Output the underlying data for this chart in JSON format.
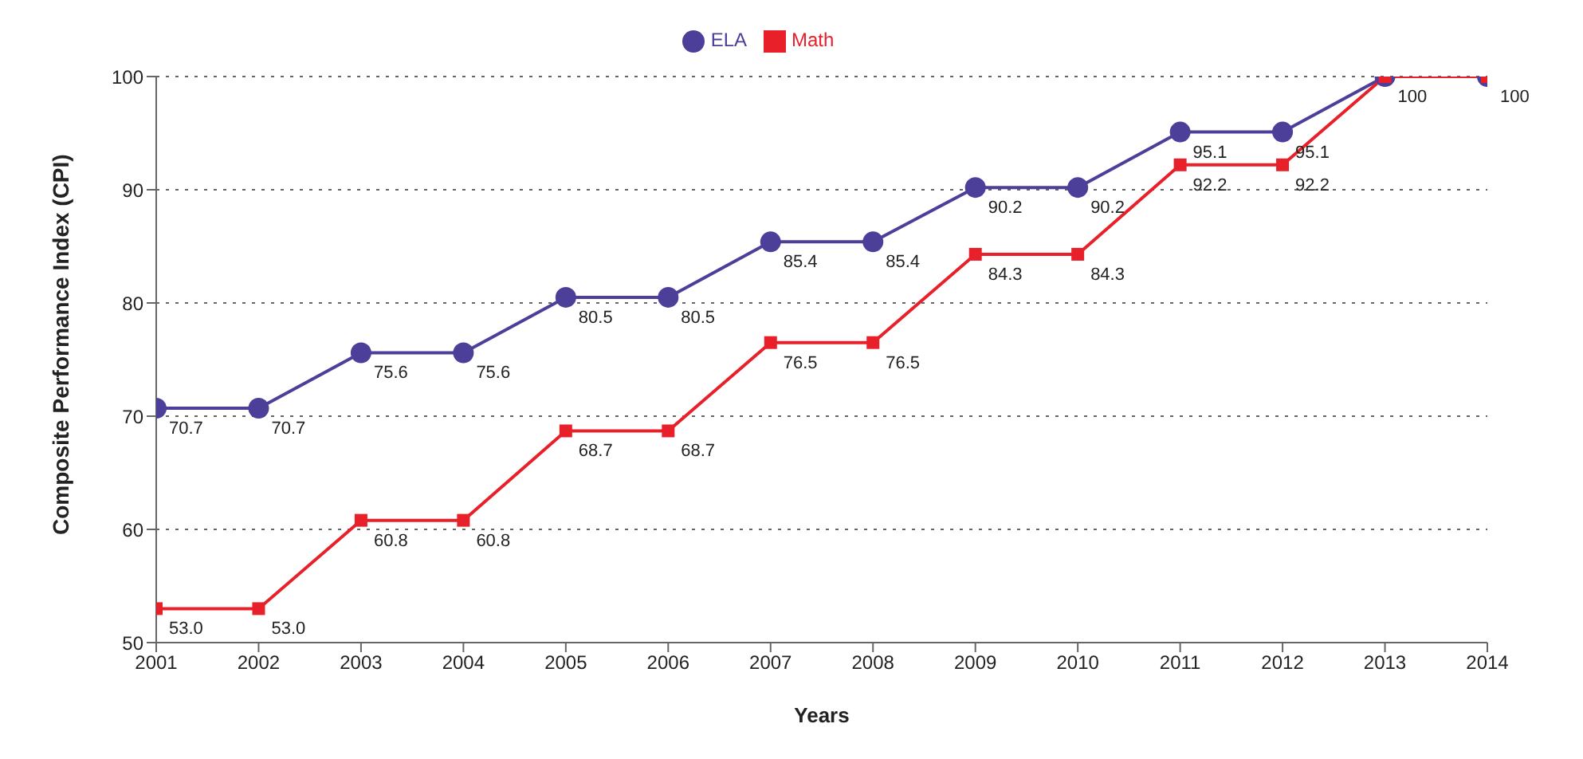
{
  "chart_data": {
    "type": "line",
    "xlabel": "Years",
    "ylabel": "Composite Performance Index (CPI)",
    "x": [
      2001,
      2002,
      2003,
      2004,
      2005,
      2006,
      2007,
      2008,
      2009,
      2010,
      2011,
      2012,
      2013,
      2014
    ],
    "xlim": [
      2001,
      2014
    ],
    "xticks": [
      2001,
      2002,
      2003,
      2004,
      2005,
      2006,
      2007,
      2008,
      2009,
      2010,
      2011,
      2012,
      2013,
      2014
    ],
    "ylim": [
      50,
      100
    ],
    "yticks": [
      50,
      60,
      70,
      80,
      90,
      100
    ],
    "grid": "y",
    "legend": "top",
    "series": [
      {
        "name": "ELA",
        "color": "#4b3f9a",
        "marker": "circle",
        "values": [
          70.7,
          70.7,
          75.6,
          75.6,
          80.5,
          80.5,
          85.4,
          85.4,
          90.2,
          90.2,
          95.1,
          95.1,
          100,
          100
        ],
        "value_labels": [
          "70.7",
          "70.7",
          "75.6",
          "75.6",
          "80.5",
          "80.5",
          "85.4",
          "85.4",
          "90.2",
          "90.2",
          "95.1",
          "95.1",
          null,
          null
        ]
      },
      {
        "name": "Math",
        "color": "#e8202a",
        "marker": "square",
        "values": [
          53.0,
          53.0,
          60.8,
          60.8,
          68.7,
          68.7,
          76.5,
          76.5,
          84.3,
          84.3,
          92.2,
          92.2,
          100,
          100
        ],
        "value_labels": [
          "53.0",
          "53.0",
          "60.8",
          "60.8",
          "68.7",
          "68.7",
          "76.5",
          "76.5",
          "84.3",
          "84.3",
          "92.2",
          "92.2",
          "100",
          "100"
        ]
      }
    ]
  }
}
